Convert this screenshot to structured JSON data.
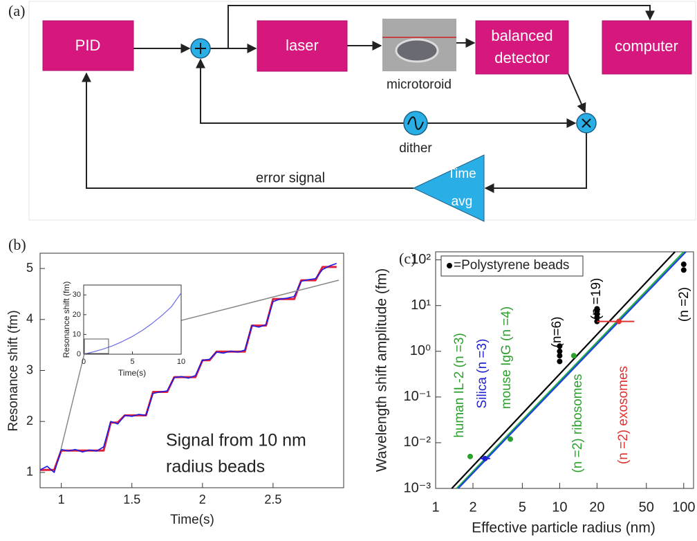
{
  "diagram": {
    "panel_label": "(a)",
    "pid": "PID",
    "laser": "laser",
    "microtoroid": "microtoroid",
    "detector": [
      "balanced",
      "detector"
    ],
    "computer": "computer",
    "dither": "dither",
    "time_avg": [
      "Time",
      "avg"
    ],
    "error_signal": "error signal"
  },
  "chart_data": [
    {
      "type": "line",
      "panel_label": "(b)",
      "xlabel": "Time(s)",
      "ylabel": "Resonance shift (fm)",
      "annotation": [
        "Signal from 10 nm",
        "radius beads"
      ],
      "x": [
        0.85,
        0.9,
        0.95,
        1.0,
        1.05,
        1.1,
        1.15,
        1.2,
        1.25,
        1.3,
        1.35,
        1.4,
        1.45,
        1.5,
        1.55,
        1.6,
        1.65,
        1.7,
        1.75,
        1.8,
        1.85,
        1.9,
        1.95,
        2.0,
        2.05,
        2.1,
        2.15,
        2.2,
        2.25,
        2.3,
        2.35,
        2.4,
        2.45,
        2.5,
        2.55,
        2.6,
        2.65,
        2.7,
        2.75,
        2.8,
        2.85,
        2.9,
        2.95
      ],
      "series": [
        {
          "color": "#e0203a",
          "values": [
            1.05,
            1.05,
            1.05,
            1.43,
            1.43,
            1.43,
            1.43,
            1.43,
            1.43,
            1.43,
            1.98,
            1.98,
            2.12,
            2.12,
            2.12,
            2.12,
            2.58,
            2.58,
            2.58,
            2.87,
            2.87,
            2.87,
            2.87,
            3.2,
            3.2,
            3.37,
            3.37,
            3.37,
            3.37,
            3.37,
            3.88,
            3.88,
            3.88,
            4.4,
            4.4,
            4.4,
            4.4,
            4.77,
            4.77,
            4.77,
            5.03,
            5.03,
            5.03
          ]
        },
        {
          "color": "#1a1ae6",
          "values": [
            1.05,
            1.12,
            1.0,
            1.45,
            1.42,
            1.45,
            1.4,
            1.44,
            1.42,
            1.5,
            2.0,
            1.95,
            2.12,
            2.1,
            2.14,
            2.12,
            2.55,
            2.58,
            2.6,
            2.86,
            2.88,
            2.85,
            2.9,
            3.2,
            3.22,
            3.36,
            3.34,
            3.38,
            3.36,
            3.4,
            3.88,
            3.85,
            3.9,
            4.35,
            4.4,
            4.42,
            4.45,
            4.75,
            4.78,
            4.8,
            4.98,
            5.05,
            5.1
          ]
        }
      ],
      "xlim": [
        0.85,
        3.0
      ],
      "ylim": [
        0.7,
        5.3
      ],
      "xticks": [
        1,
        1.5,
        2,
        2.5
      ],
      "yticks": [
        1,
        2,
        3,
        4,
        5
      ]
    },
    {
      "type": "line",
      "xlabel": "Time(s)",
      "ylabel": "Resonance shift (fm)",
      "x": [
        0,
        1,
        2,
        3,
        4,
        5,
        6,
        7,
        8,
        9,
        10
      ],
      "series": [
        {
          "color": "#6a6ae8",
          "values": [
            0,
            1.2,
            2.6,
            4.3,
            6.5,
            9,
            12,
            15.5,
            19.5,
            24,
            31
          ]
        }
      ],
      "xlim": [
        0,
        10
      ],
      "ylim": [
        0,
        35
      ],
      "xticks": [
        0,
        5,
        10
      ],
      "yticks": [
        0,
        10,
        20,
        30
      ]
    },
    {
      "type": "scatter",
      "panel_label": "(c)",
      "xlabel": "Effective particle radius (nm)",
      "ylabel": "Wavelength shift amplitude (fm)",
      "xscale": "log",
      "yscale": "log",
      "legend": "upper left",
      "xlim": [
        1,
        120
      ],
      "ylim": [
        0.001,
        150
      ],
      "xticks": [
        1,
        2,
        5,
        10,
        20,
        50,
        100
      ],
      "yticks": [
        {
          "value": 0.001,
          "label": "10⁻³"
        },
        {
          "value": 0.01,
          "label": "10⁻²"
        },
        {
          "value": 0.1,
          "label": "10⁻¹"
        },
        {
          "value": 1,
          "label": "10⁰"
        },
        {
          "value": 10,
          "label": "10¹"
        },
        {
          "value": 100,
          "label": "10²"
        }
      ],
      "lines": [
        {
          "color": "#000000",
          "x": [
            1.35,
            85
          ],
          "values": [
            0.001,
            150
          ]
        },
        {
          "color": "#22b04a",
          "x": [
            1.48,
            100
          ],
          "values": [
            0.001,
            150
          ]
        },
        {
          "color": "#2040e0",
          "x": [
            1.52,
            104
          ],
          "values": [
            0.001,
            150
          ]
        }
      ],
      "series": [
        {
          "name": "=Polystyrene beads",
          "color": "#000000",
          "x": [
            10,
            10,
            10,
            10,
            20,
            20,
            20,
            20,
            20,
            100,
            100
          ],
          "values": [
            0.6,
            0.8,
            1.0,
            1.3,
            4.5,
            5.5,
            6.5,
            7.5,
            8.5,
            80,
            60
          ]
        },
        {
          "color": "#2ca02c",
          "x": [
            1.9
          ],
          "values": [
            0.005
          ]
        },
        {
          "color": "#1f1fd0",
          "x": [
            2.5
          ],
          "values": [
            0.0045
          ],
          "xerr": [
            0.25
          ]
        },
        {
          "color": "#2ca02c",
          "x": [
            4
          ],
          "values": [
            0.012
          ]
        },
        {
          "color": "#2ca02c",
          "x": [
            13
          ],
          "values": [
            0.8
          ]
        },
        {
          "color": "#e03030",
          "x": [
            30
          ],
          "values": [
            4.5
          ],
          "xerr": [
            10
          ]
        }
      ],
      "annotations": [
        {
          "text": "human IL-2  (n =3)",
          "color": "#2ca02c"
        },
        {
          "text": "Silica  (n =3)",
          "color": "#1f1fd0"
        },
        {
          "text": "mouse IgG  (n =4)",
          "color": "#2ca02c"
        },
        {
          "text": "(n=6)",
          "color": "#000000"
        },
        {
          "text": "(n =19)",
          "color": "#000000"
        },
        {
          "text": "(n =2)",
          "color": "#000000"
        },
        {
          "text": "(n =2) ribosomes",
          "color": "#2ca02c"
        },
        {
          "text": "(n =2)  exosomes",
          "color": "#e03030"
        }
      ]
    }
  ]
}
